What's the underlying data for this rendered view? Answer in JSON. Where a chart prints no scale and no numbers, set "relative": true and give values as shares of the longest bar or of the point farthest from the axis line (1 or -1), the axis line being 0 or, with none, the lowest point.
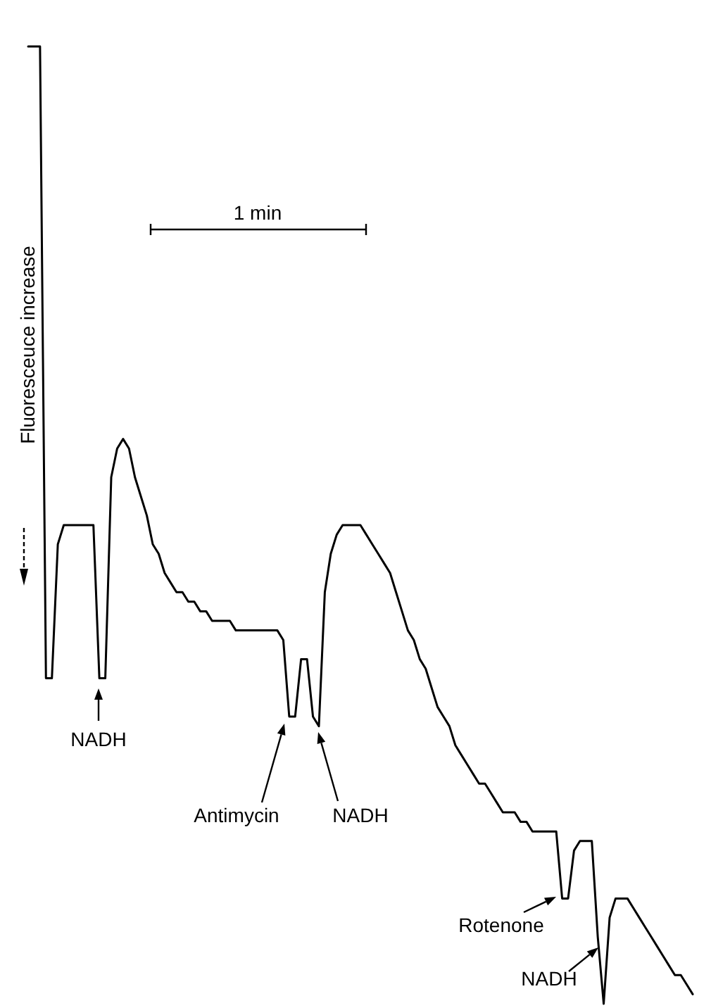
{
  "chart_data": {
    "type": "line",
    "relative": true,
    "ylabel": "Fluoresceuce increase",
    "color": "#000000",
    "categories": [
      null,
      null,
      null,
      null,
      null,
      null,
      null,
      null,
      null,
      null,
      null,
      null,
      null,
      null,
      null,
      null,
      null,
      null,
      null,
      null,
      null,
      null,
      null,
      null,
      null,
      null,
      null,
      null,
      null,
      null,
      null,
      null,
      null,
      null,
      null,
      null,
      null,
      null,
      null,
      null,
      null,
      null,
      null,
      null,
      null,
      null,
      null,
      null,
      null,
      null,
      null,
      null,
      null,
      null,
      null,
      null,
      null,
      null,
      null,
      null,
      null,
      null,
      null,
      null,
      null,
      null,
      null,
      null,
      null,
      null,
      null,
      null,
      null,
      null,
      null,
      null,
      null,
      null,
      null,
      null,
      null,
      null,
      null,
      null,
      null,
      null,
      null,
      null,
      null,
      null,
      null,
      null,
      null,
      null,
      null,
      null,
      null,
      null,
      null,
      null,
      null,
      null,
      null,
      null,
      null,
      null,
      null,
      null,
      null,
      null,
      null,
      null,
      null
    ],
    "values": [
      1.0,
      1.0,
      1.0,
      0.34,
      0.34,
      0.48,
      0.5,
      0.5,
      0.5,
      0.5,
      0.5,
      0.5,
      0.34,
      0.34,
      0.55,
      0.58,
      0.59,
      0.58,
      0.55,
      0.53,
      0.51,
      0.48,
      0.47,
      0.45,
      0.44,
      0.43,
      0.43,
      0.42,
      0.42,
      0.41,
      0.41,
      0.4,
      0.4,
      0.4,
      0.4,
      0.39,
      0.39,
      0.39,
      0.39,
      0.39,
      0.39,
      0.39,
      0.39,
      0.38,
      0.3,
      0.3,
      0.36,
      0.36,
      0.3,
      0.29,
      0.43,
      0.47,
      0.49,
      0.5,
      0.5,
      0.5,
      0.5,
      0.49,
      0.48,
      0.47,
      0.46,
      0.45,
      0.43,
      0.41,
      0.39,
      0.38,
      0.36,
      0.35,
      0.33,
      0.31,
      0.3,
      0.29,
      0.27,
      0.26,
      0.25,
      0.24,
      0.23,
      0.23,
      0.22,
      0.21,
      0.2,
      0.2,
      0.2,
      0.19,
      0.19,
      0.18,
      0.18,
      0.18,
      0.18,
      0.18,
      0.11,
      0.11,
      0.16,
      0.17,
      0.17,
      0.17,
      0.07,
      0,
      0.09,
      0.11,
      0.11,
      0.11,
      0.1,
      0.09,
      0.08,
      0.07,
      0.06,
      0.05,
      0.04,
      0.03,
      0.03,
      0.02,
      0.01
    ],
    "annotations": [
      "1 min",
      "NADH",
      "Antimycin",
      "NADH",
      "Rotenone",
      "NADH"
    ]
  }
}
